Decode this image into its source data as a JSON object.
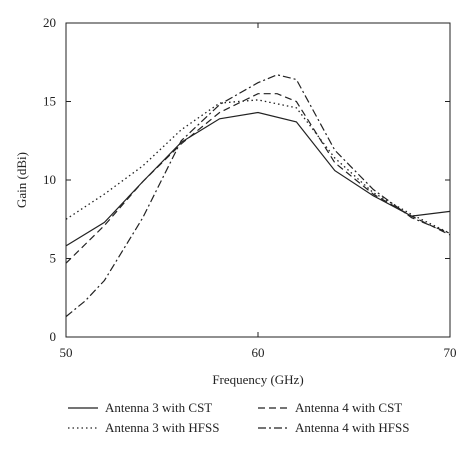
{
  "chart_data": {
    "type": "line",
    "xlabel": "Frequency (GHz)",
    "ylabel": "Gain (dBi)",
    "xlim": [
      50,
      70
    ],
    "ylim": [
      0,
      20
    ],
    "xticks": [
      50,
      60,
      70
    ],
    "yticks": [
      0,
      5,
      10,
      15,
      20
    ],
    "grid": false,
    "legend_position": "bottom",
    "series": [
      {
        "name": "Antenna 3 with CST",
        "style": "solid",
        "color": "#222222",
        "x": [
          50,
          52,
          54,
          56,
          58,
          60,
          62,
          64,
          66,
          68,
          70
        ],
        "y": [
          5.8,
          7.3,
          9.9,
          12.4,
          13.9,
          14.3,
          13.7,
          10.6,
          9.0,
          7.7,
          8.0
        ]
      },
      {
        "name": "Antenna 4 with CST",
        "style": "dashed",
        "color": "#222222",
        "x": [
          50,
          52,
          54,
          56,
          58,
          60,
          61,
          62,
          64,
          66,
          68,
          70
        ],
        "y": [
          4.7,
          7.1,
          9.9,
          12.3,
          14.3,
          15.5,
          15.5,
          15.0,
          11.1,
          9.1,
          7.7,
          6.5
        ]
      },
      {
        "name": "Antenna 3 with HFSS",
        "style": "dotted",
        "color": "#222222",
        "x": [
          50,
          52,
          54,
          56,
          58,
          60,
          62,
          64,
          66,
          68,
          70
        ],
        "y": [
          7.5,
          9.1,
          10.9,
          13.2,
          14.9,
          15.1,
          14.6,
          11.4,
          9.2,
          7.8,
          6.6
        ]
      },
      {
        "name": "Antenna 4 with HFSS",
        "style": "dashdot",
        "color": "#222222",
        "x": [
          50,
          51,
          52,
          54,
          56,
          58,
          60,
          61,
          62,
          64,
          66,
          68,
          70
        ],
        "y": [
          1.3,
          2.3,
          3.6,
          7.6,
          12.5,
          14.8,
          16.2,
          16.7,
          16.4,
          11.9,
          9.4,
          7.6,
          6.6
        ]
      }
    ]
  }
}
